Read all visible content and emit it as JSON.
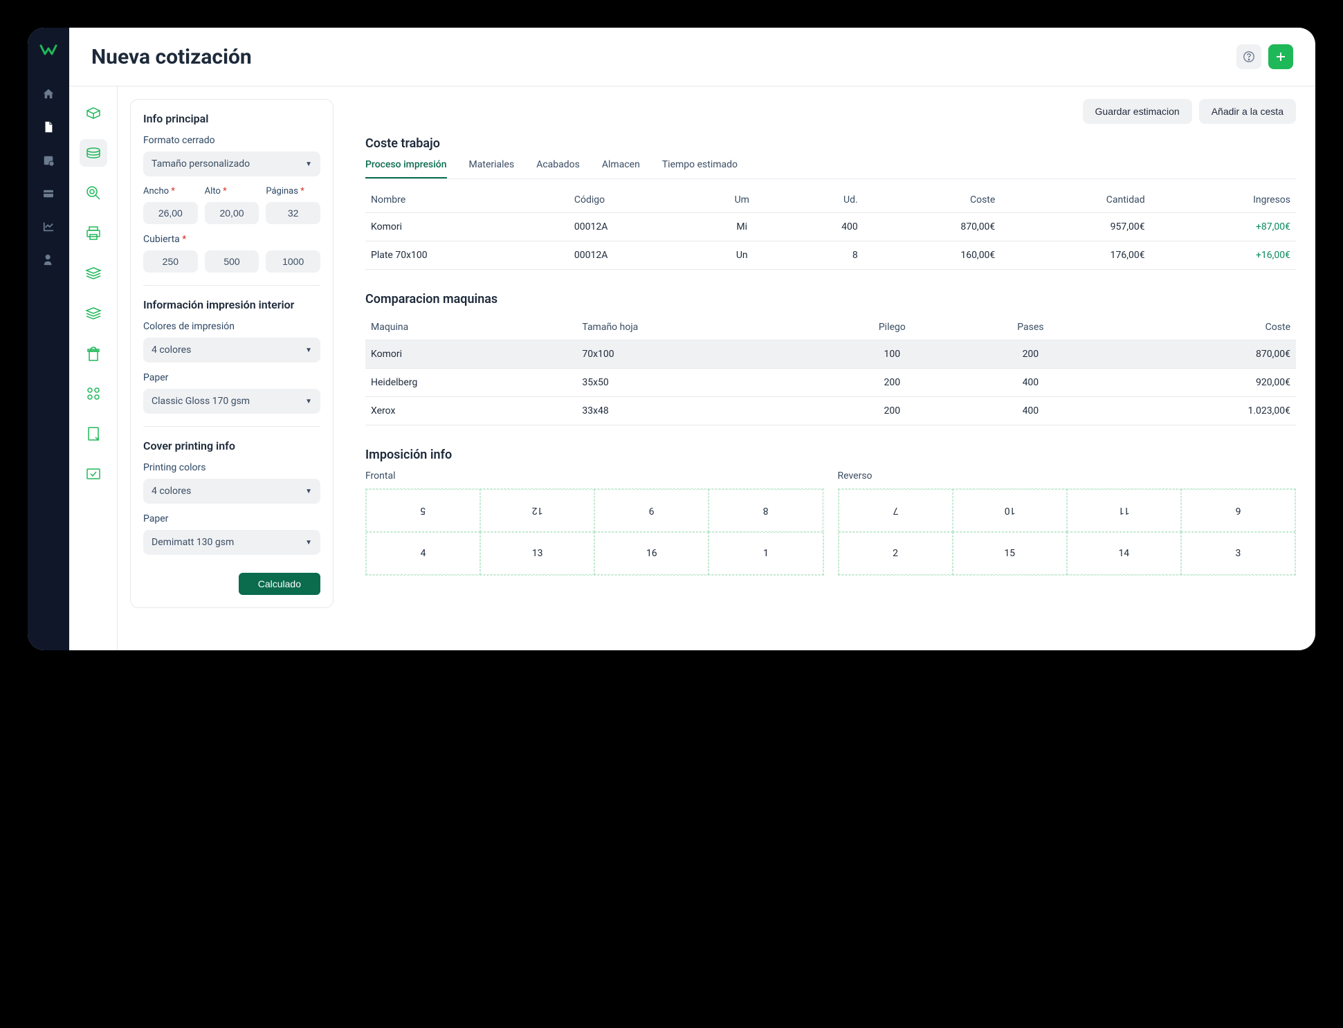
{
  "header": {
    "title": "Nueva cotización"
  },
  "actions": {
    "save": "Guardar estimacion",
    "add_cart": "Añadir a la cesta"
  },
  "form": {
    "main_info": "Info principal",
    "closed_format": "Formato cerrado",
    "size_select": "Tamaño personalizado",
    "width_label": "Ancho",
    "height_label": "Alto",
    "pages_label": "Páginas",
    "width": "26,00",
    "height": "20,00",
    "pages": "32",
    "cover_label": "Cubierta",
    "qty1": "250",
    "qty2": "500",
    "qty3": "1000",
    "interior_info": "Información impresión interior",
    "print_colors_label": "Colores de impresión",
    "colors_select": "4 colores",
    "paper_label": "Paper",
    "paper_select": "Classic Gloss 170 gsm",
    "cover_info": "Cover printing info",
    "printing_colors_label": "Printing colors",
    "cover_colors_select": "4 colores",
    "cover_paper_label": "Paper",
    "cover_paper_select": "Demimatt 130 gsm",
    "calc_btn": "Calculado"
  },
  "cost": {
    "title": "Coste trabajo",
    "tabs": {
      "process": "Proceso impresión",
      "materials": "Materiales",
      "finishing": "Acabados",
      "storage": "Almacen",
      "time": "Tiempo estimado"
    },
    "cols": {
      "name": "Nombre",
      "code": "Código",
      "um": "Um",
      "ud": "Ud.",
      "cost": "Coste",
      "qty": "Cantidad",
      "income": "Ingresos"
    },
    "rows": [
      {
        "name": "Komori",
        "code": "00012A",
        "um": "Mi",
        "ud": "400",
        "cost": "870,00€",
        "qty": "957,00€",
        "income": "+87,00€"
      },
      {
        "name": "Plate 70x100",
        "code": "00012A",
        "um": "Un",
        "ud": "8",
        "cost": "160,00€",
        "qty": "176,00€",
        "income": "+16,00€"
      }
    ]
  },
  "compare": {
    "title": "Comparacion maquinas",
    "cols": {
      "machine": "Maquina",
      "sheet": "Tamaño hoja",
      "pliego": "Pilego",
      "passes": "Pases",
      "cost": "Coste"
    },
    "rows": [
      {
        "machine": "Komori",
        "sheet": "70x100",
        "pliego": "100",
        "passes": "200",
        "cost": "870,00€",
        "hl": true
      },
      {
        "machine": "Heidelberg",
        "sheet": "35x50",
        "pliego": "200",
        "passes": "400",
        "cost": "920,00€",
        "hl": false
      },
      {
        "machine": "Xerox",
        "sheet": "33x48",
        "pliego": "200",
        "passes": "400",
        "cost": "1.023,00€",
        "hl": false
      }
    ]
  },
  "imposition": {
    "title": "Imposición info",
    "front_label": "Frontal",
    "back_label": "Reverso",
    "front": [
      [
        "5",
        "12",
        "9",
        "8"
      ],
      [
        "4",
        "13",
        "16",
        "1"
      ]
    ],
    "back": [
      [
        "7",
        "10",
        "11",
        "6"
      ],
      [
        "2",
        "15",
        "14",
        "3"
      ]
    ]
  }
}
